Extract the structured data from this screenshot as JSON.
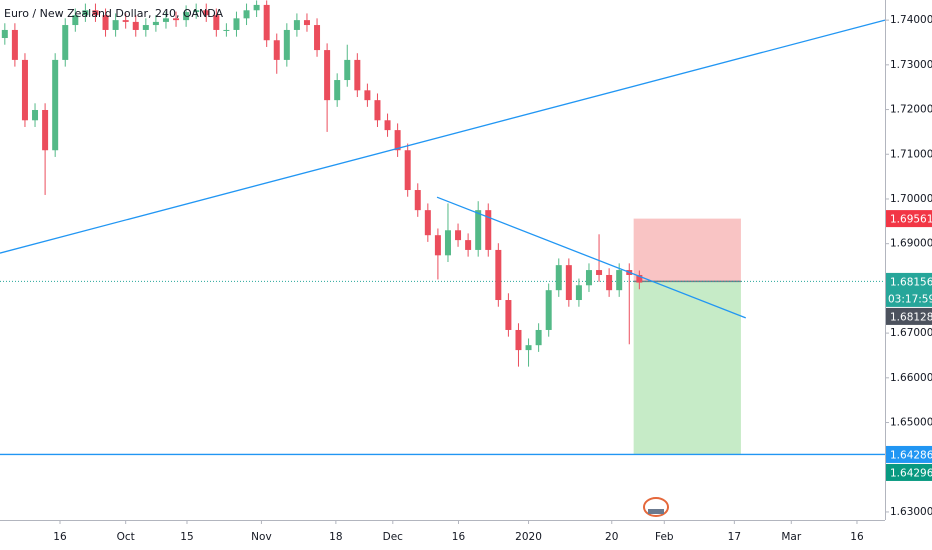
{
  "chart_data": {
    "type": "candlestick",
    "title": "Euro / New Zealand Dollar, 240, OANDA",
    "xlim": [
      1.3,
      203.4
    ],
    "ylim": [
      1.6282,
      1.7445
    ],
    "xticks": [
      {
        "value": 15,
        "label": "16"
      },
      {
        "value": 30,
        "label": "Oct"
      },
      {
        "value": 44,
        "label": "15"
      },
      {
        "value": 61,
        "label": "Nov"
      },
      {
        "value": 78,
        "label": "18"
      },
      {
        "value": 91,
        "label": "Dec"
      },
      {
        "value": 106,
        "label": "16"
      },
      {
        "value": 122,
        "label": "2020"
      },
      {
        "value": 141,
        "label": "20"
      },
      {
        "value": 153,
        "label": "Feb"
      },
      {
        "value": 169,
        "label": "17"
      },
      {
        "value": 182,
        "label": "Mar"
      },
      {
        "value": 197,
        "label": "16"
      }
    ],
    "yticks": [
      {
        "value": 1.74,
        "label": "1.74000"
      },
      {
        "value": 1.73,
        "label": "1.73000"
      },
      {
        "value": 1.72,
        "label": "1.72000"
      },
      {
        "value": 1.71,
        "label": "1.71000"
      },
      {
        "value": 1.7,
        "label": "1.70000"
      },
      {
        "value": 1.69,
        "label": "1.69000"
      },
      {
        "value": 1.67,
        "label": "1.67000"
      },
      {
        "value": 1.66,
        "label": "1.66000"
      },
      {
        "value": 1.65,
        "label": "1.65000"
      },
      {
        "value": 1.63,
        "label": "1.63000"
      }
    ],
    "up_color": "#53b987",
    "down_color": "#eb4d5c",
    "x": [
      2.4,
      4.7,
      7.0,
      9.3,
      11.6,
      13.9,
      16.2,
      18.5,
      20.8,
      23.1,
      25.4,
      27.7,
      30.0,
      32.3,
      34.6,
      36.9,
      39.2,
      41.5,
      43.8,
      46.1,
      48.4,
      50.7,
      53.0,
      55.3,
      57.6,
      59.9,
      62.2,
      64.5,
      66.8,
      69.1,
      71.4,
      73.7,
      76.0,
      78.3,
      80.6,
      82.9,
      85.2,
      87.5,
      89.8,
      92.1,
      94.4,
      96.7,
      99.0,
      101.3,
      103.6,
      105.9,
      108.2,
      110.5,
      112.8,
      115.1,
      117.4,
      119.7,
      122.0,
      124.3,
      126.6,
      128.9,
      131.2,
      133.5,
      135.8,
      138.1,
      140.4,
      142.7,
      145.0,
      147.3
    ],
    "open": [
      1.736,
      1.7378,
      1.7311,
      1.7176,
      1.7199,
      1.7109,
      1.7311,
      1.7389,
      1.7411,
      1.7422,
      1.7411,
      1.7378,
      1.74,
      1.7396,
      1.7378,
      1.7389,
      1.7396,
      1.7404,
      1.74,
      1.7418,
      1.7422,
      1.7411,
      1.7378,
      1.7378,
      1.7404,
      1.7422,
      1.7434,
      1.7355,
      1.7311,
      1.7378,
      1.74,
      1.7389,
      1.7333,
      1.7221,
      1.7266,
      1.7311,
      1.7243,
      1.7221,
      1.7176,
      1.7154,
      1.7109,
      1.702,
      1.6975,
      1.6919,
      1.6874,
      1.693,
      1.6908,
      1.6886,
      1.6975,
      1.6886,
      1.6774,
      1.6707,
      1.6662,
      1.6673,
      1.6707,
      1.6796,
      1.6852,
      1.6774,
      1.6807,
      1.6841,
      1.683,
      1.6796,
      1.6841,
      1.683
    ],
    "high": [
      1.7393,
      1.7393,
      1.7326,
      1.7214,
      1.7214,
      1.7326,
      1.7404,
      1.7426,
      1.7437,
      1.7437,
      1.7426,
      1.7415,
      1.7415,
      1.7411,
      1.7404,
      1.7411,
      1.7419,
      1.7419,
      1.7433,
      1.7437,
      1.7437,
      1.7426,
      1.7393,
      1.7419,
      1.7437,
      1.7444,
      1.7444,
      1.737,
      1.7393,
      1.7415,
      1.7415,
      1.7404,
      1.7348,
      1.7281,
      1.7345,
      1.7326,
      1.7258,
      1.7236,
      1.7191,
      1.7169,
      1.7124,
      1.7035,
      1.699,
      1.6934,
      1.699,
      1.6945,
      1.6923,
      1.6995,
      1.699,
      1.6901,
      1.6789,
      1.6722,
      1.6688,
      1.6722,
      1.6811,
      1.6867,
      1.6867,
      1.6822,
      1.6856,
      1.6921,
      1.6845,
      1.6856,
      1.6856,
      1.684
    ],
    "low": [
      1.7345,
      1.7296,
      1.7161,
      1.7161,
      1.7009,
      1.7094,
      1.7296,
      1.7374,
      1.7396,
      1.7396,
      1.7363,
      1.7363,
      1.7381,
      1.7363,
      1.7363,
      1.7374,
      1.7381,
      1.7385,
      1.7385,
      1.7403,
      1.7396,
      1.7363,
      1.7363,
      1.7363,
      1.7389,
      1.7407,
      1.734,
      1.728,
      1.7296,
      1.7363,
      1.7374,
      1.7318,
      1.715,
      1.7206,
      1.7251,
      1.7228,
      1.7206,
      1.7161,
      1.7139,
      1.7094,
      1.7005,
      1.696,
      1.6904,
      1.682,
      1.6859,
      1.6893,
      1.6871,
      1.6871,
      1.6871,
      1.6759,
      1.6692,
      1.6625,
      1.6625,
      1.6658,
      1.6692,
      1.6781,
      1.6759,
      1.6759,
      1.6792,
      1.6815,
      1.6781,
      1.6781,
      1.6675,
      1.6798
    ],
    "close": [
      1.7378,
      1.7311,
      1.7176,
      1.7199,
      1.7109,
      1.7311,
      1.7389,
      1.7411,
      1.7422,
      1.7411,
      1.7378,
      1.74,
      1.7396,
      1.7378,
      1.7389,
      1.7396,
      1.7404,
      1.74,
      1.7418,
      1.7422,
      1.7411,
      1.7378,
      1.7378,
      1.7404,
      1.7422,
      1.7434,
      1.7355,
      1.7311,
      1.7378,
      1.74,
      1.7389,
      1.7333,
      1.7221,
      1.7266,
      1.7311,
      1.7243,
      1.7221,
      1.7176,
      1.7154,
      1.7109,
      1.702,
      1.6975,
      1.6919,
      1.6874,
      1.693,
      1.6908,
      1.6886,
      1.6975,
      1.6886,
      1.6774,
      1.6707,
      1.6662,
      1.6673,
      1.6707,
      1.6796,
      1.6852,
      1.6774,
      1.6807,
      1.6841,
      1.683,
      1.6796,
      1.6841,
      1.683,
      1.6813
    ],
    "trendlines": [
      {
        "x": [
          1.3,
          203.4
        ],
        "y": [
          1.6879,
          1.74
        ],
        "color": "#2196f3"
      },
      {
        "x": [
          101.1,
          171.6
        ],
        "y": [
          1.7004,
          1.6734
        ],
        "color": "#2196f3"
      }
    ],
    "position": {
      "x": [
        146.0,
        170.5
      ],
      "entry": 1.68156,
      "stop": 1.69561,
      "target": 1.64286,
      "stop_color": "#f7b5b5",
      "target_color": "#b8e6b9",
      "entry_color": "#787b86"
    },
    "price_labels": [
      {
        "value": 1.69561,
        "color": "#f23645"
      },
      {
        "value": 1.68156,
        "color": "#26a69a",
        "line": "dotted",
        "countdown": "03:17:59"
      },
      {
        "value": 1.68128,
        "color": "#4c525e"
      },
      {
        "value": 1.64286,
        "color": "#2196f3",
        "line": "solid"
      },
      {
        "value": 1.64296,
        "color": "#089981"
      }
    ]
  }
}
